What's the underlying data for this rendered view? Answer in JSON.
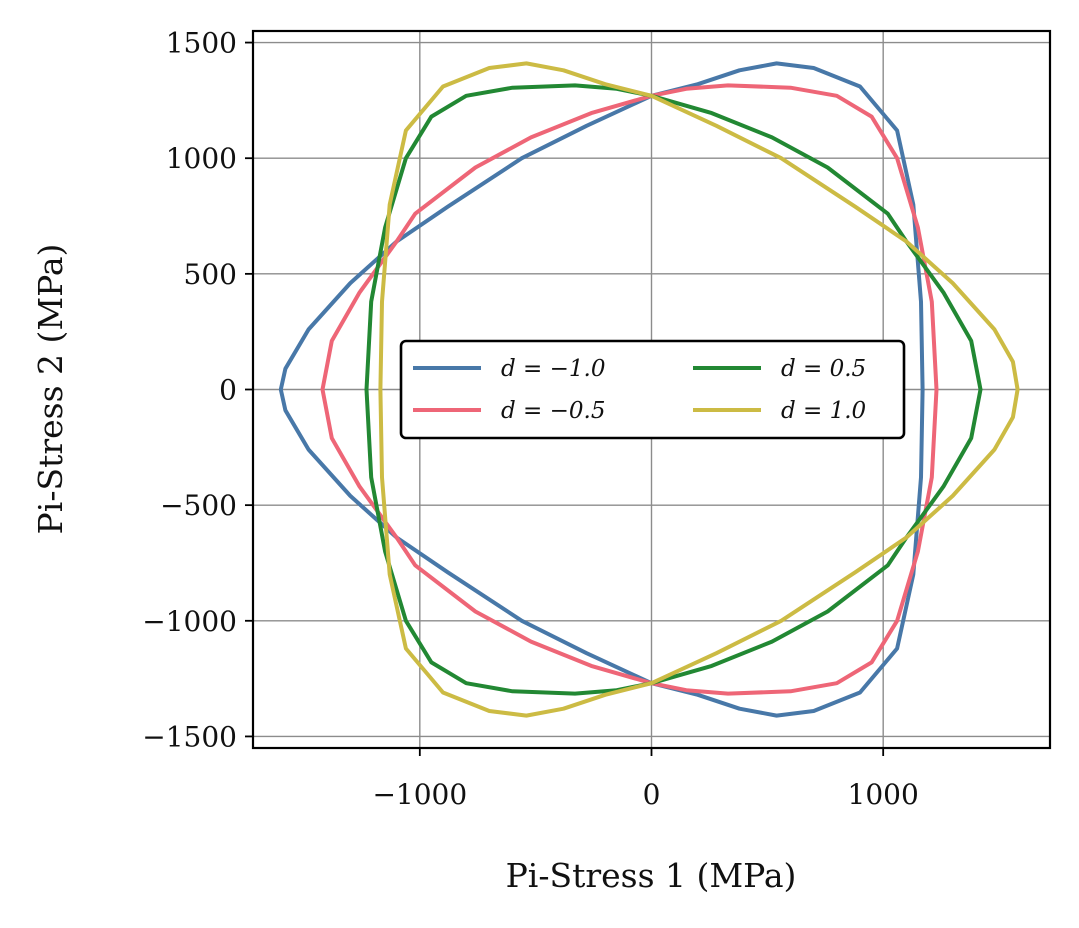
{
  "chart_data": {
    "type": "line",
    "xlabel": "Pi-Stress 1 (MPa)",
    "ylabel": "Pi-Stress 2 (MPa)",
    "xlim": [
      -1720,
      1720
    ],
    "ylim": [
      -1550,
      1550
    ],
    "xticks": [
      -1000,
      0,
      1000
    ],
    "xtick_labels": [
      "−1000",
      "0",
      "1000"
    ],
    "yticks": [
      1500,
      1000,
      500,
      0,
      -500,
      -1000,
      -1500
    ],
    "ytick_labels": [
      "1500",
      "1000",
      "500",
      "0",
      "−500",
      "−1000",
      "−1500"
    ],
    "grid": true,
    "legend": {
      "placement": "center",
      "columns": 2
    },
    "series": [
      {
        "name": "d = −1.0",
        "color": "#4878a8",
        "points": [
          [
            1170,
            0
          ],
          [
            1163,
            380
          ],
          [
            1130,
            800
          ],
          [
            1060,
            1120
          ],
          [
            900,
            1310
          ],
          [
            700,
            1390
          ],
          [
            540,
            1410
          ],
          [
            380,
            1380
          ],
          [
            200,
            1320
          ],
          [
            0,
            1270
          ],
          [
            -280,
            1140
          ],
          [
            -560,
            1000
          ],
          [
            -880,
            790
          ],
          [
            -1100,
            640
          ],
          [
            -1300,
            460
          ],
          [
            -1480,
            260
          ],
          [
            -1580,
            90
          ],
          [
            -1600,
            0
          ],
          [
            -1580,
            -90
          ],
          [
            -1480,
            -260
          ],
          [
            -1300,
            -460
          ],
          [
            -1100,
            -640
          ],
          [
            -880,
            -790
          ],
          [
            -560,
            -1000
          ],
          [
            -280,
            -1140
          ],
          [
            0,
            -1270
          ],
          [
            200,
            -1320
          ],
          [
            380,
            -1380
          ],
          [
            540,
            -1410
          ],
          [
            700,
            -1390
          ],
          [
            900,
            -1310
          ],
          [
            1060,
            -1120
          ],
          [
            1130,
            -800
          ],
          [
            1163,
            -380
          ],
          [
            1170,
            0
          ]
        ]
      },
      {
        "name": "d = −0.5",
        "color": "#ee6677",
        "points": [
          [
            1230,
            0
          ],
          [
            1210,
            380
          ],
          [
            1150,
            700
          ],
          [
            1060,
            1000
          ],
          [
            950,
            1180
          ],
          [
            800,
            1270
          ],
          [
            600,
            1305
          ],
          [
            330,
            1315
          ],
          [
            150,
            1300
          ],
          [
            0,
            1270
          ],
          [
            -260,
            1195
          ],
          [
            -520,
            1090
          ],
          [
            -760,
            960
          ],
          [
            -1020,
            760
          ],
          [
            -1100,
            640
          ],
          [
            -1260,
            420
          ],
          [
            -1380,
            210
          ],
          [
            -1420,
            0
          ],
          [
            -1380,
            -210
          ],
          [
            -1260,
            -420
          ],
          [
            -1100,
            -640
          ],
          [
            -1020,
            -760
          ],
          [
            -760,
            -960
          ],
          [
            -520,
            -1090
          ],
          [
            -260,
            -1195
          ],
          [
            0,
            -1270
          ],
          [
            150,
            -1300
          ],
          [
            330,
            -1315
          ],
          [
            600,
            -1305
          ],
          [
            800,
            -1270
          ],
          [
            950,
            -1180
          ],
          [
            1060,
            -1000
          ],
          [
            1150,
            -700
          ],
          [
            1210,
            -380
          ],
          [
            1230,
            0
          ]
        ]
      },
      {
        "name": "d = 0.5",
        "color": "#228833",
        "points": [
          [
            1420,
            0
          ],
          [
            1380,
            210
          ],
          [
            1260,
            420
          ],
          [
            1100,
            640
          ],
          [
            1020,
            760
          ],
          [
            760,
            960
          ],
          [
            520,
            1090
          ],
          [
            260,
            1195
          ],
          [
            0,
            1270
          ],
          [
            -150,
            1300
          ],
          [
            -330,
            1315
          ],
          [
            -600,
            1305
          ],
          [
            -800,
            1270
          ],
          [
            -950,
            1180
          ],
          [
            -1060,
            1000
          ],
          [
            -1150,
            700
          ],
          [
            -1210,
            380
          ],
          [
            -1230,
            0
          ],
          [
            -1210,
            -380
          ],
          [
            -1150,
            -700
          ],
          [
            -1060,
            -1000
          ],
          [
            -950,
            -1180
          ],
          [
            -800,
            -1270
          ],
          [
            -600,
            -1305
          ],
          [
            -330,
            -1315
          ],
          [
            -150,
            -1300
          ],
          [
            0,
            -1270
          ],
          [
            260,
            -1195
          ],
          [
            520,
            -1090
          ],
          [
            760,
            -960
          ],
          [
            1020,
            -760
          ],
          [
            1100,
            -640
          ],
          [
            1260,
            -420
          ],
          [
            1380,
            -210
          ],
          [
            1420,
            0
          ]
        ]
      },
      {
        "name": "d = 1.0",
        "color": "#ccbb44",
        "points": [
          [
            1580,
            0
          ],
          [
            1560,
            120
          ],
          [
            1480,
            260
          ],
          [
            1300,
            460
          ],
          [
            1100,
            640
          ],
          [
            880,
            790
          ],
          [
            560,
            1000
          ],
          [
            280,
            1140
          ],
          [
            0,
            1270
          ],
          [
            -200,
            1320
          ],
          [
            -380,
            1380
          ],
          [
            -540,
            1410
          ],
          [
            -700,
            1390
          ],
          [
            -900,
            1310
          ],
          [
            -1060,
            1120
          ],
          [
            -1130,
            800
          ],
          [
            -1163,
            380
          ],
          [
            -1170,
            0
          ],
          [
            -1163,
            -380
          ],
          [
            -1130,
            -800
          ],
          [
            -1060,
            -1120
          ],
          [
            -900,
            -1310
          ],
          [
            -700,
            -1390
          ],
          [
            -540,
            -1410
          ],
          [
            -380,
            -1380
          ],
          [
            -200,
            -1320
          ],
          [
            0,
            -1270
          ],
          [
            280,
            -1140
          ],
          [
            560,
            -1000
          ],
          [
            880,
            -790
          ],
          [
            1100,
            -640
          ],
          [
            1300,
            -460
          ],
          [
            1480,
            -260
          ],
          [
            1560,
            -120
          ],
          [
            1580,
            0
          ]
        ]
      }
    ]
  }
}
